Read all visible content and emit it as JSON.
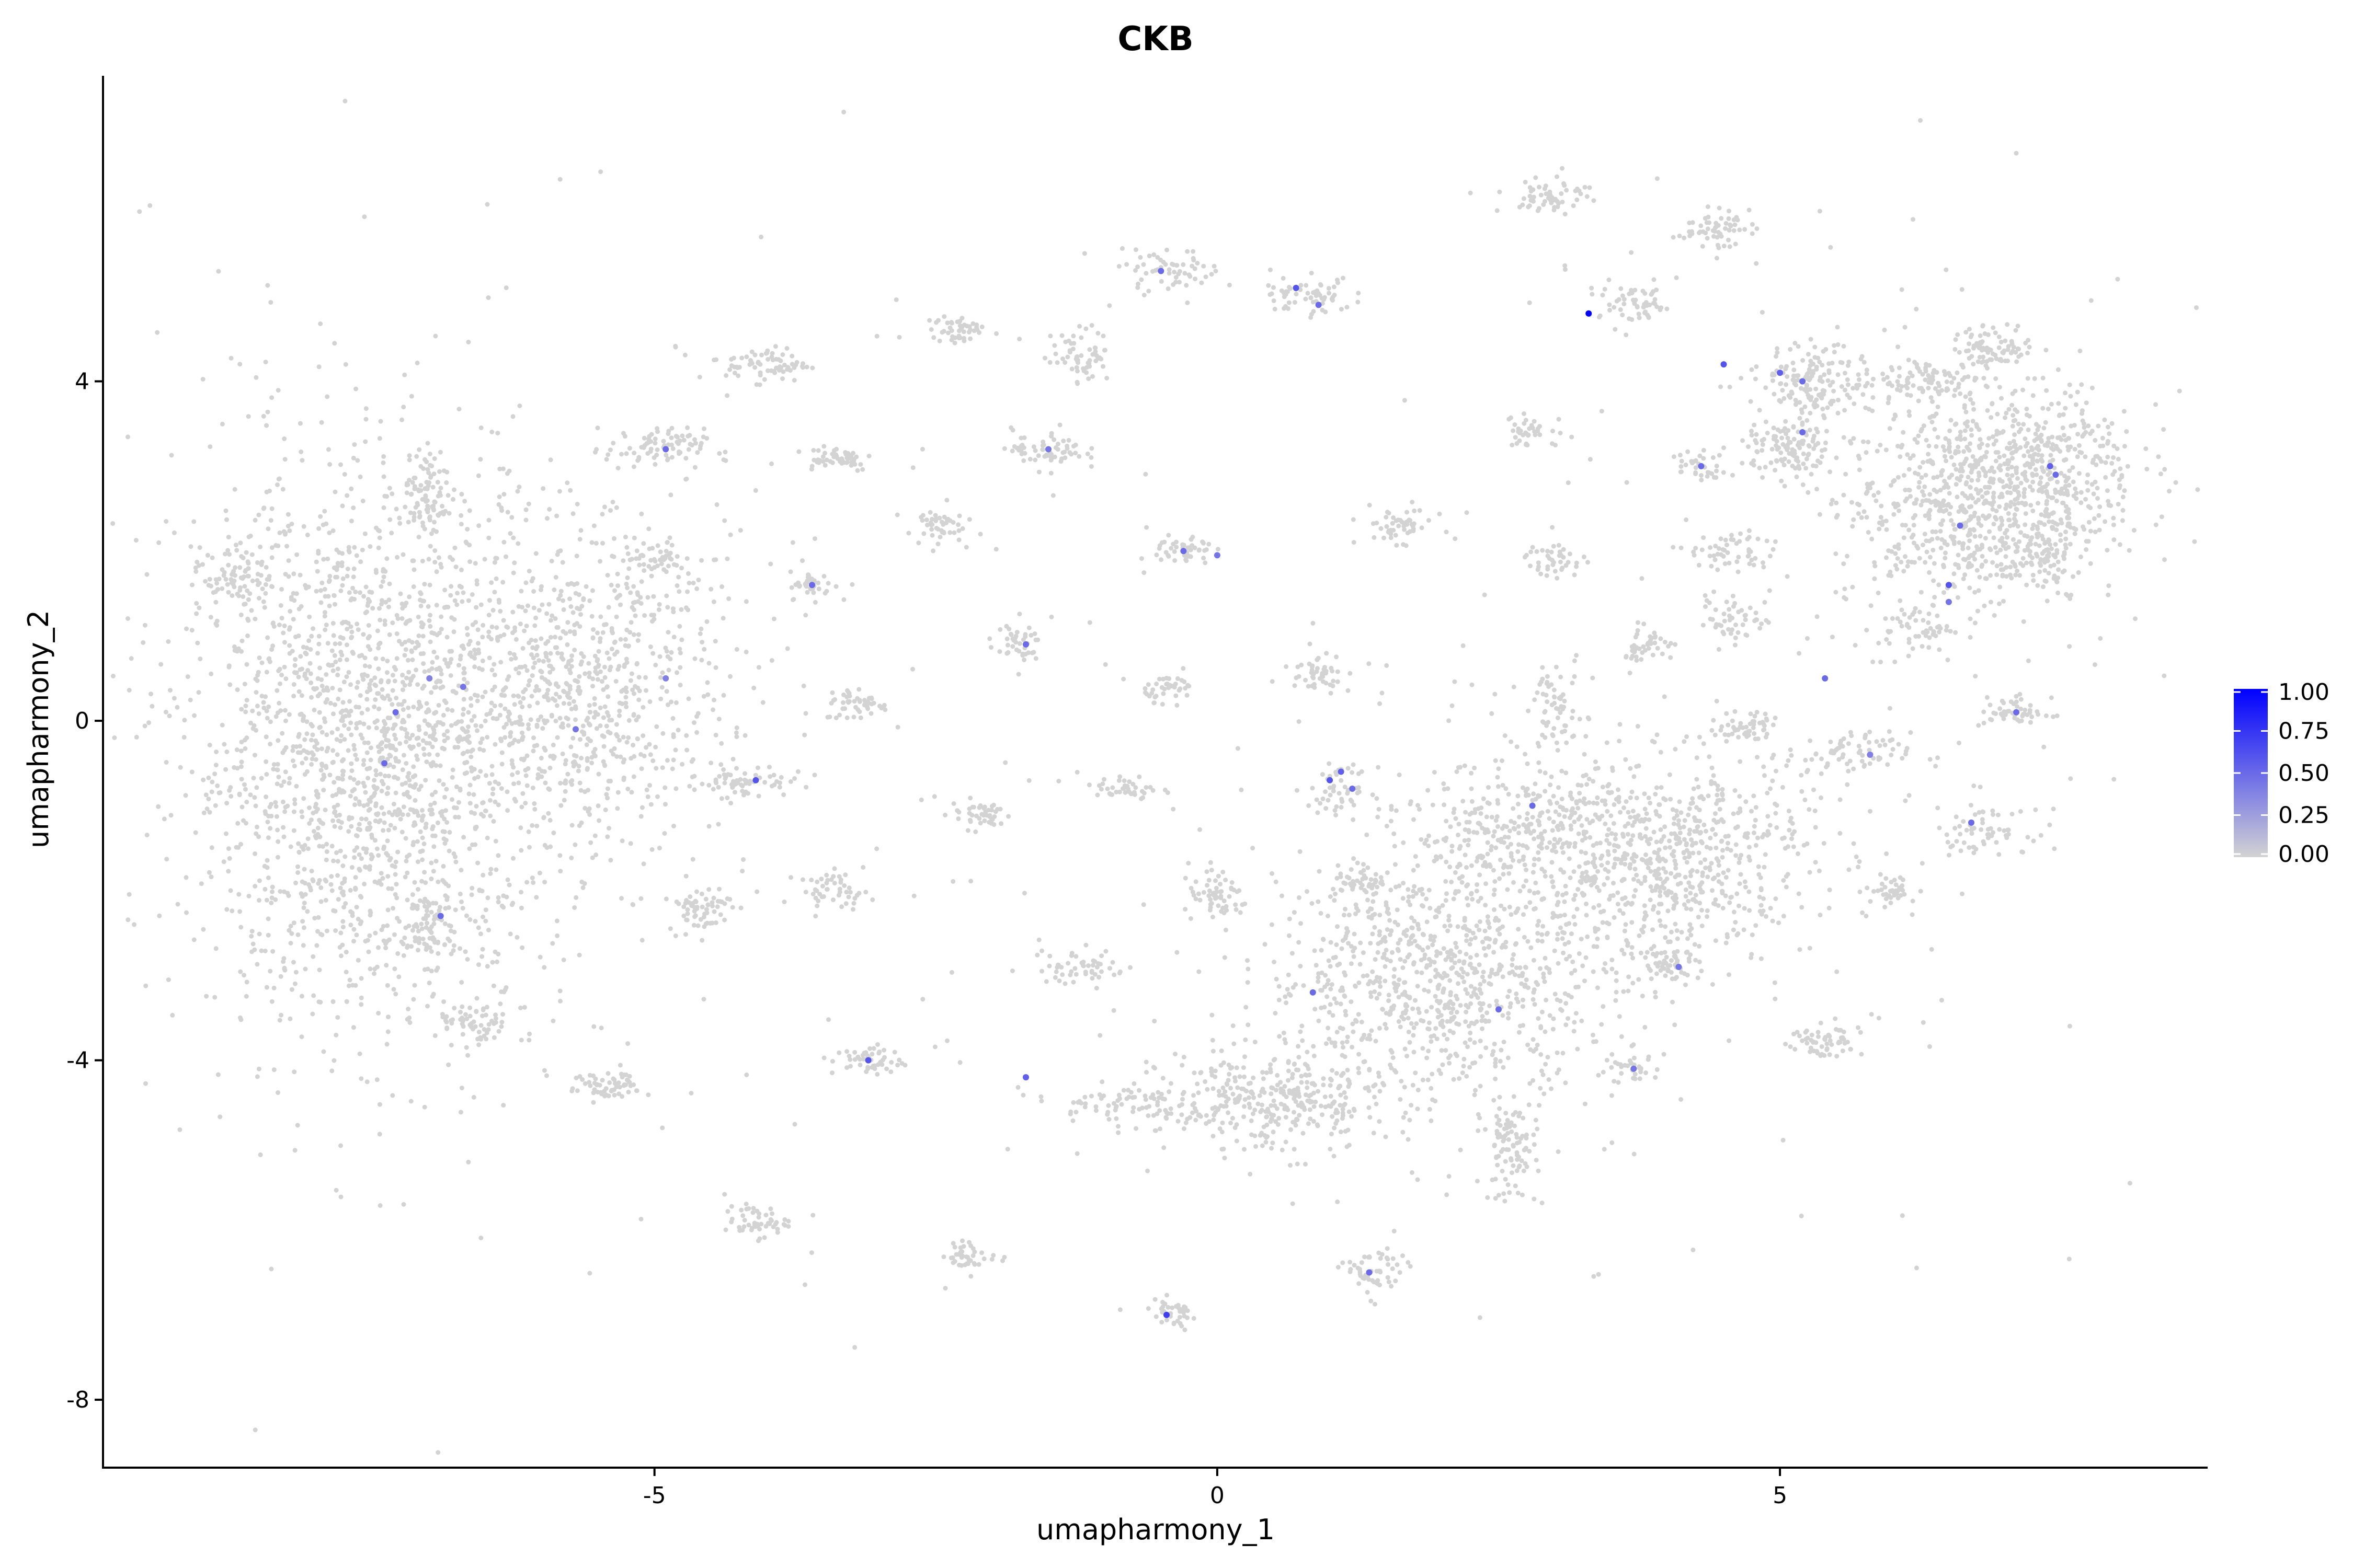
{
  "chart_data": {
    "type": "scatter",
    "title": "CKB",
    "xlabel": "umapharmony_1",
    "ylabel": "umapharmony_2",
    "xlim": [
      -9.9,
      8.8
    ],
    "ylim": [
      -8.8,
      7.6
    ],
    "x_ticks": [
      -5,
      0,
      5
    ],
    "y_ticks": [
      -8,
      -4,
      0,
      4
    ],
    "grid": false,
    "legend": {
      "placement": "right",
      "type": "colorbar",
      "min": 0.0,
      "max": 1.0,
      "ticks": [
        "1.00",
        "0.75",
        "0.50",
        "0.25",
        "0.00"
      ],
      "low_color": "#D3D3D3",
      "high_color": "#0000FF"
    },
    "background_point_color": "#D3D3D3",
    "clusters": [
      {
        "cx": -7.5,
        "cy": -0.3,
        "sx": 0.85,
        "sy": 1.6,
        "n": 2000
      },
      {
        "cx": -5.6,
        "cy": 0.4,
        "sx": 0.6,
        "sy": 0.9,
        "n": 700
      },
      {
        "cx": -8.7,
        "cy": 1.7,
        "sx": 0.15,
        "sy": 0.15,
        "n": 70
      },
      {
        "cx": -7.0,
        "cy": 2.7,
        "sx": 0.12,
        "sy": 0.22,
        "n": 80
      },
      {
        "cx": -7.0,
        "cy": -2.4,
        "sx": 0.14,
        "sy": 0.22,
        "n": 70
      },
      {
        "cx": -6.6,
        "cy": -3.6,
        "sx": 0.16,
        "sy": 0.12,
        "n": 60
      },
      {
        "cx": -5.4,
        "cy": -4.3,
        "sx": 0.16,
        "sy": 0.1,
        "n": 60
      },
      {
        "cx": -5.0,
        "cy": 3.2,
        "sx": 0.22,
        "sy": 0.12,
        "n": 80
      },
      {
        "cx": -5.0,
        "cy": 1.9,
        "sx": 0.2,
        "sy": 0.12,
        "n": 50
      },
      {
        "cx": -4.0,
        "cy": 4.2,
        "sx": 0.18,
        "sy": 0.1,
        "n": 70
      },
      {
        "cx": -3.4,
        "cy": 3.1,
        "sx": 0.18,
        "sy": 0.08,
        "n": 50
      },
      {
        "cx": -3.6,
        "cy": 1.6,
        "sx": 0.1,
        "sy": 0.08,
        "n": 40
      },
      {
        "cx": -3.2,
        "cy": 0.2,
        "sx": 0.14,
        "sy": 0.1,
        "n": 50
      },
      {
        "cx": -4.2,
        "cy": -0.7,
        "sx": 0.2,
        "sy": 0.1,
        "n": 60
      },
      {
        "cx": -4.6,
        "cy": -2.2,
        "sx": 0.14,
        "sy": 0.14,
        "n": 60
      },
      {
        "cx": -3.4,
        "cy": -2.0,
        "sx": 0.16,
        "sy": 0.1,
        "n": 50
      },
      {
        "cx": -3.1,
        "cy": -4.0,
        "sx": 0.16,
        "sy": 0.09,
        "n": 50
      },
      {
        "cx": -4.1,
        "cy": -5.9,
        "sx": 0.14,
        "sy": 0.09,
        "n": 50
      },
      {
        "cx": -2.3,
        "cy": 4.6,
        "sx": 0.12,
        "sy": 0.09,
        "n": 45
      },
      {
        "cx": -2.5,
        "cy": 2.3,
        "sx": 0.12,
        "sy": 0.1,
        "n": 45
      },
      {
        "cx": -2.1,
        "cy": -1.1,
        "sx": 0.14,
        "sy": 0.09,
        "n": 45
      },
      {
        "cx": -1.8,
        "cy": 0.9,
        "sx": 0.12,
        "sy": 0.1,
        "n": 40
      },
      {
        "cx": -1.5,
        "cy": 3.2,
        "sx": 0.16,
        "sy": 0.12,
        "n": 60
      },
      {
        "cx": -1.2,
        "cy": 4.3,
        "sx": 0.13,
        "sy": 0.16,
        "n": 60
      },
      {
        "cx": -2.2,
        "cy": -6.3,
        "sx": 0.12,
        "sy": 0.08,
        "n": 40
      },
      {
        "cx": -1.2,
        "cy": -2.9,
        "sx": 0.2,
        "sy": 0.1,
        "n": 50
      },
      {
        "cx": -0.9,
        "cy": -4.5,
        "sx": 0.28,
        "sy": 0.1,
        "n": 70
      },
      {
        "cx": -0.8,
        "cy": -0.8,
        "sx": 0.14,
        "sy": 0.08,
        "n": 40
      },
      {
        "cx": -0.4,
        "cy": 5.3,
        "sx": 0.22,
        "sy": 0.12,
        "n": 60
      },
      {
        "cx": -0.3,
        "cy": 2.0,
        "sx": 0.13,
        "sy": 0.1,
        "n": 45
      },
      {
        "cx": -0.4,
        "cy": 0.4,
        "sx": 0.12,
        "sy": 0.08,
        "n": 40
      },
      {
        "cx": 0.0,
        "cy": -2.1,
        "sx": 0.14,
        "sy": 0.13,
        "n": 60
      },
      {
        "cx": -0.4,
        "cy": -7.0,
        "sx": 0.12,
        "sy": 0.09,
        "n": 40
      },
      {
        "cx": 0.8,
        "cy": 5.0,
        "sx": 0.2,
        "sy": 0.1,
        "n": 60
      },
      {
        "cx": 0.9,
        "cy": 0.6,
        "sx": 0.15,
        "sy": 0.12,
        "n": 50
      },
      {
        "cx": 1.1,
        "cy": -0.8,
        "sx": 0.14,
        "sy": 0.12,
        "n": 45
      },
      {
        "cx": 1.3,
        "cy": -1.9,
        "sx": 0.14,
        "sy": 0.1,
        "n": 40
      },
      {
        "cx": 1.6,
        "cy": 2.3,
        "sx": 0.16,
        "sy": 0.1,
        "n": 50
      },
      {
        "cx": 1.4,
        "cy": -6.5,
        "sx": 0.14,
        "sy": 0.14,
        "n": 55
      },
      {
        "cx": 0.5,
        "cy": -4.5,
        "sx": 0.5,
        "sy": 0.3,
        "n": 350
      },
      {
        "cx": 2.0,
        "cy": -3.0,
        "sx": 0.8,
        "sy": 0.7,
        "n": 900
      },
      {
        "cx": 2.7,
        "cy": -1.3,
        "sx": 0.5,
        "sy": 0.4,
        "n": 300
      },
      {
        "cx": 2.6,
        "cy": -5.1,
        "sx": 0.12,
        "sy": 0.28,
        "n": 90
      },
      {
        "cx": 2.8,
        "cy": 3.4,
        "sx": 0.16,
        "sy": 0.1,
        "n": 40
      },
      {
        "cx": 3.0,
        "cy": 1.9,
        "sx": 0.13,
        "sy": 0.1,
        "n": 40
      },
      {
        "cx": 3.0,
        "cy": 6.2,
        "sx": 0.16,
        "sy": 0.12,
        "n": 60
      },
      {
        "cx": 3.0,
        "cy": 0.1,
        "sx": 0.12,
        "sy": 0.25,
        "n": 60
      },
      {
        "cx": 3.7,
        "cy": 4.9,
        "sx": 0.2,
        "sy": 0.12,
        "n": 60
      },
      {
        "cx": 3.8,
        "cy": 0.9,
        "sx": 0.13,
        "sy": 0.1,
        "n": 40
      },
      {
        "cx": 3.7,
        "cy": -4.1,
        "sx": 0.1,
        "sy": 0.08,
        "n": 30
      },
      {
        "cx": 4.0,
        "cy": -1.6,
        "sx": 0.65,
        "sy": 0.6,
        "n": 700
      },
      {
        "cx": 4.0,
        "cy": -2.9,
        "sx": 0.15,
        "sy": 0.1,
        "n": 50
      },
      {
        "cx": 4.3,
        "cy": 3.0,
        "sx": 0.1,
        "sy": 0.1,
        "n": 35
      },
      {
        "cx": 4.4,
        "cy": 5.8,
        "sx": 0.16,
        "sy": 0.1,
        "n": 60
      },
      {
        "cx": 4.6,
        "cy": 2.0,
        "sx": 0.16,
        "sy": 0.14,
        "n": 50
      },
      {
        "cx": 4.6,
        "cy": 1.2,
        "sx": 0.16,
        "sy": 0.14,
        "n": 50
      },
      {
        "cx": 4.7,
        "cy": -0.05,
        "sx": 0.13,
        "sy": 0.09,
        "n": 50
      },
      {
        "cx": 5.3,
        "cy": 4.0,
        "sx": 0.22,
        "sy": 0.2,
        "n": 150
      },
      {
        "cx": 5.1,
        "cy": 3.2,
        "sx": 0.2,
        "sy": 0.18,
        "n": 120
      },
      {
        "cx": 5.4,
        "cy": -3.8,
        "sx": 0.15,
        "sy": 0.12,
        "n": 60
      },
      {
        "cx": 5.6,
        "cy": -0.4,
        "sx": 0.28,
        "sy": 0.13,
        "n": 80
      },
      {
        "cx": 6.0,
        "cy": -2.0,
        "sx": 0.12,
        "sy": 0.09,
        "n": 40
      },
      {
        "cx": 6.2,
        "cy": 1.1,
        "sx": 0.16,
        "sy": 0.14,
        "n": 50
      },
      {
        "cx": 6.3,
        "cy": 4.0,
        "sx": 0.3,
        "sy": 0.15,
        "n": 100
      },
      {
        "cx": 6.6,
        "cy": 2.5,
        "sx": 0.55,
        "sy": 0.6,
        "n": 600
      },
      {
        "cx": 6.9,
        "cy": 4.4,
        "sx": 0.18,
        "sy": 0.12,
        "n": 80
      },
      {
        "cx": 7.3,
        "cy": 3.0,
        "sx": 0.45,
        "sy": 0.5,
        "n": 400
      },
      {
        "cx": 7.3,
        "cy": 2.0,
        "sx": 0.2,
        "sy": 0.2,
        "n": 80
      },
      {
        "cx": 6.8,
        "cy": -1.3,
        "sx": 0.2,
        "sy": 0.12,
        "n": 60
      },
      {
        "cx": 7.1,
        "cy": 0.1,
        "sx": 0.16,
        "sy": 0.09,
        "n": 50
      }
    ],
    "scattered_fraction": 0.06,
    "expressing_points": [
      {
        "x": -4.9,
        "y": 3.2,
        "v": 0.5
      },
      {
        "x": -3.6,
        "y": 1.6,
        "v": 0.5
      },
      {
        "x": -4.1,
        "y": -0.7,
        "v": 0.6
      },
      {
        "x": -7.3,
        "y": 0.1,
        "v": 0.5
      },
      {
        "x": -6.7,
        "y": 0.4,
        "v": 0.45
      },
      {
        "x": -7.0,
        "y": 0.5,
        "v": 0.4
      },
      {
        "x": -5.7,
        "y": -0.1,
        "v": 0.45
      },
      {
        "x": -7.4,
        "y": -0.5,
        "v": 0.5
      },
      {
        "x": -4.9,
        "y": 0.5,
        "v": 0.4
      },
      {
        "x": -6.9,
        "y": -2.3,
        "v": 0.5
      },
      {
        "x": -3.1,
        "y": -4.0,
        "v": 0.6
      },
      {
        "x": -1.7,
        "y": -4.2,
        "v": 0.55
      },
      {
        "x": -1.7,
        "y": 0.9,
        "v": 0.5
      },
      {
        "x": -1.5,
        "y": 3.2,
        "v": 0.45
      },
      {
        "x": -0.5,
        "y": 5.3,
        "v": 0.5
      },
      {
        "x": 0.7,
        "y": 5.1,
        "v": 0.6
      },
      {
        "x": 0.9,
        "y": 4.9,
        "v": 0.5
      },
      {
        "x": -0.3,
        "y": 2.0,
        "v": 0.5
      },
      {
        "x": 0.0,
        "y": 1.95,
        "v": 0.45
      },
      {
        "x": 1.0,
        "y": -0.7,
        "v": 0.6
      },
      {
        "x": 1.1,
        "y": -0.6,
        "v": 0.55
      },
      {
        "x": 1.2,
        "y": -0.8,
        "v": 0.5
      },
      {
        "x": 0.85,
        "y": -3.2,
        "v": 0.5
      },
      {
        "x": 1.35,
        "y": -6.5,
        "v": 0.5
      },
      {
        "x": -0.45,
        "y": -7.0,
        "v": 0.7
      },
      {
        "x": 3.3,
        "y": 4.8,
        "v": 1.0
      },
      {
        "x": 4.5,
        "y": 4.2,
        "v": 0.6
      },
      {
        "x": 2.8,
        "y": -1.0,
        "v": 0.5
      },
      {
        "x": 2.5,
        "y": -3.4,
        "v": 0.5
      },
      {
        "x": 4.1,
        "y": -2.9,
        "v": 0.45
      },
      {
        "x": 3.7,
        "y": -4.1,
        "v": 0.45
      },
      {
        "x": 4.3,
        "y": 3.0,
        "v": 0.5
      },
      {
        "x": 5.0,
        "y": 4.1,
        "v": 0.55
      },
      {
        "x": 5.2,
        "y": 4.0,
        "v": 0.5
      },
      {
        "x": 5.2,
        "y": 3.4,
        "v": 0.5
      },
      {
        "x": 5.4,
        "y": 0.5,
        "v": 0.5
      },
      {
        "x": 6.5,
        "y": 1.6,
        "v": 0.6
      },
      {
        "x": 6.6,
        "y": 2.3,
        "v": 0.5
      },
      {
        "x": 6.5,
        "y": 1.4,
        "v": 0.45
      },
      {
        "x": 7.4,
        "y": 3.0,
        "v": 0.55
      },
      {
        "x": 7.45,
        "y": 2.9,
        "v": 0.5
      },
      {
        "x": 7.1,
        "y": 0.1,
        "v": 0.5
      },
      {
        "x": 6.7,
        "y": -1.2,
        "v": 0.5
      },
      {
        "x": 5.8,
        "y": -0.4,
        "v": 0.4
      }
    ]
  }
}
